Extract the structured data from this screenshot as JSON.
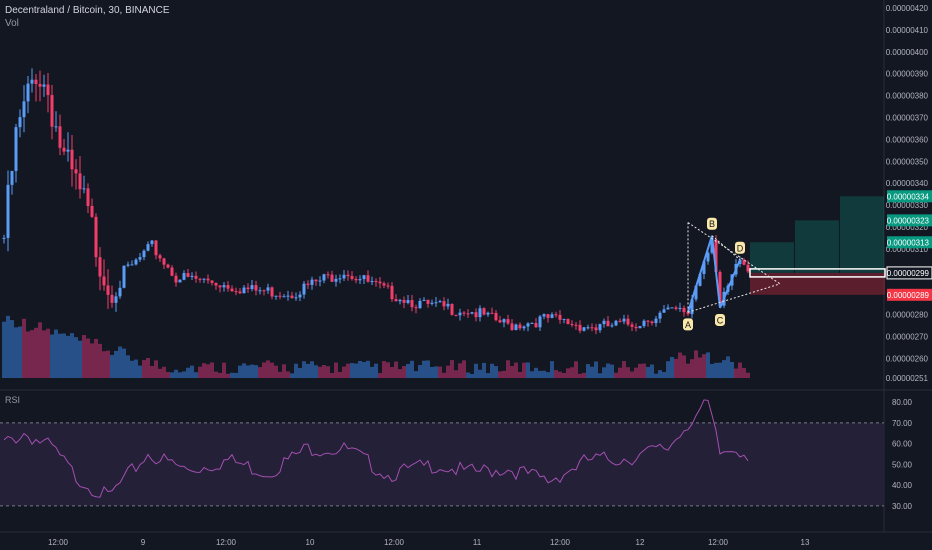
{
  "header": {
    "symbol_line": "Decentraland / Bitcoin, 30, BINANCE",
    "volume_label": "Vol"
  },
  "rsi": {
    "label": "RSI"
  },
  "colors": {
    "background": "#131722",
    "up": "#5b9cf6",
    "down": "#f23e6b",
    "rsi_line": "#a44fb0",
    "rsi_band": "#26213a",
    "target": "#0b7a6c",
    "stop": "#b1283a",
    "pattern": "#e8e8e8",
    "pattern_label": "#fbe7a8",
    "grid": "#1e222d",
    "axis_text": "#b2b5be"
  },
  "price_axis": {
    "ticks": [
      "0.00000420",
      "0.00000410",
      "0.00000400",
      "0.00000390",
      "0.00000380",
      "0.00000370",
      "0.00000360",
      "0.00000350",
      "0.00000340",
      "0.00000330",
      "0.00000320",
      "0.00000310",
      "0.00000280",
      "0.00000270",
      "0.00000260",
      "0.00000251"
    ],
    "labels": [
      {
        "value": 334,
        "text": "0.00000334",
        "color": "#089981"
      },
      {
        "value": 323,
        "text": "0.00000323",
        "color": "#089981"
      },
      {
        "value": 313,
        "text": "0.00000313",
        "color": "#089981"
      },
      {
        "value": 299,
        "text": "0.00000299",
        "color": "#ffffff",
        "outlined": true
      },
      {
        "value": 289,
        "text": "0.00000289",
        "color": "#f23645"
      }
    ]
  },
  "rsi_axis": {
    "ticks": [
      "80.00",
      "70.00",
      "60.00",
      "50.00",
      "40.00",
      "30.00"
    ]
  },
  "time_axis": {
    "ticks": [
      "12:00",
      "9",
      "12:00",
      "10",
      "12:00",
      "11",
      "12:00",
      "12",
      "12:00",
      "13"
    ]
  },
  "pattern": {
    "points": [
      {
        "label": "A",
        "bar": 171,
        "price": 281
      },
      {
        "label": "B",
        "bar": 177,
        "price": 316
      },
      {
        "label": "C",
        "bar": 179,
        "price": 283
      },
      {
        "label": "D",
        "bar": 184,
        "price": 305
      }
    ]
  },
  "chart_data": {
    "type": "candlestick",
    "title": "Decentraland / Bitcoin, 30, BINANCE",
    "ylim": [
      251,
      420
    ],
    "rsi_ylim": [
      30,
      80
    ],
    "rsi_levels": [
      70,
      30
    ],
    "position": {
      "entry": 299,
      "targets": [
        313,
        323,
        334
      ],
      "stop": 289
    },
    "anchors": [
      {
        "bar": 0,
        "price": 315
      },
      {
        "bar": 3,
        "price": 360
      },
      {
        "bar": 8,
        "price": 392
      },
      {
        "bar": 11,
        "price": 382
      },
      {
        "bar": 15,
        "price": 350
      },
      {
        "bar": 20,
        "price": 330
      },
      {
        "bar": 26,
        "price": 294
      },
      {
        "bar": 32,
        "price": 302
      },
      {
        "bar": 37,
        "price": 311
      },
      {
        "bar": 43,
        "price": 297
      },
      {
        "bar": 52,
        "price": 295
      },
      {
        "bar": 62,
        "price": 291
      },
      {
        "bar": 72,
        "price": 290
      },
      {
        "bar": 85,
        "price": 300
      },
      {
        "bar": 95,
        "price": 291
      },
      {
        "bar": 105,
        "price": 284
      },
      {
        "bar": 116,
        "price": 282
      },
      {
        "bar": 126,
        "price": 275
      },
      {
        "bar": 136,
        "price": 278
      },
      {
        "bar": 148,
        "price": 274
      },
      {
        "bar": 158,
        "price": 276
      },
      {
        "bar": 165,
        "price": 281
      },
      {
        "bar": 171,
        "price": 281
      },
      {
        "bar": 174,
        "price": 300
      },
      {
        "bar": 177,
        "price": 316
      },
      {
        "bar": 179,
        "price": 283
      },
      {
        "bar": 184,
        "price": 305
      },
      {
        "bar": 186,
        "price": 300
      }
    ],
    "rsi_anchors": [
      {
        "bar": 0,
        "value": 60
      },
      {
        "bar": 5,
        "value": 65
      },
      {
        "bar": 12,
        "value": 58
      },
      {
        "bar": 18,
        "value": 44
      },
      {
        "bar": 26,
        "value": 34
      },
      {
        "bar": 36,
        "value": 55
      },
      {
        "bar": 46,
        "value": 47
      },
      {
        "bar": 56,
        "value": 52
      },
      {
        "bar": 66,
        "value": 46
      },
      {
        "bar": 76,
        "value": 58
      },
      {
        "bar": 86,
        "value": 57
      },
      {
        "bar": 96,
        "value": 45
      },
      {
        "bar": 108,
        "value": 50
      },
      {
        "bar": 116,
        "value": 46
      },
      {
        "bar": 126,
        "value": 48
      },
      {
        "bar": 136,
        "value": 42
      },
      {
        "bar": 146,
        "value": 52
      },
      {
        "bar": 156,
        "value": 53
      },
      {
        "bar": 166,
        "value": 58
      },
      {
        "bar": 171,
        "value": 70
      },
      {
        "bar": 176,
        "value": 79
      },
      {
        "bar": 179,
        "value": 55
      },
      {
        "bar": 183,
        "value": 58
      },
      {
        "bar": 186,
        "value": 55
      }
    ]
  }
}
